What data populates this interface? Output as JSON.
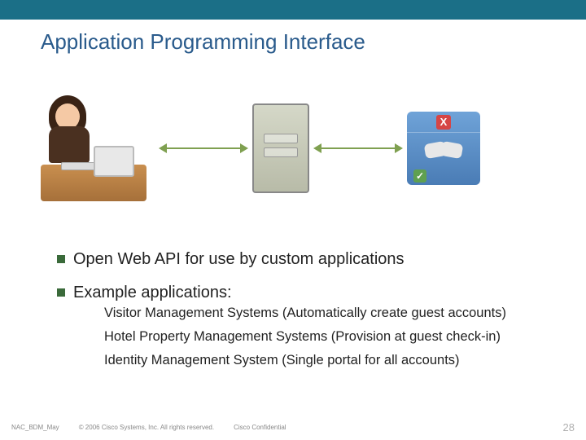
{
  "title": "Application Programming Interface",
  "bullets": {
    "b1": "Open Web API for use by custom applications",
    "b2": "Example applications:",
    "sub1": "Visitor Management Systems (Automatically create guest accounts)",
    "sub2": "Hotel Property Management Systems (Provision at guest check-in)",
    "sub3": "Identity Management System (Single portal for all accounts)"
  },
  "auth": {
    "x": "X",
    "check": "✓"
  },
  "footer": {
    "left": "NAC_BDM_May",
    "copyright": "© 2006 Cisco Systems, Inc. All rights reserved.",
    "conf": "Cisco Confidential",
    "page": "28"
  },
  "colors": {
    "topbar": "#1b6f87",
    "title": "#2a5b8c",
    "bullet_square": "#3a6a3a",
    "arrow": "#7fa050",
    "authbox_top": "#6fa3d8",
    "authbox_bot": "#4a7cb5",
    "x_bg": "#d64545",
    "check_bg": "#5fa050"
  }
}
